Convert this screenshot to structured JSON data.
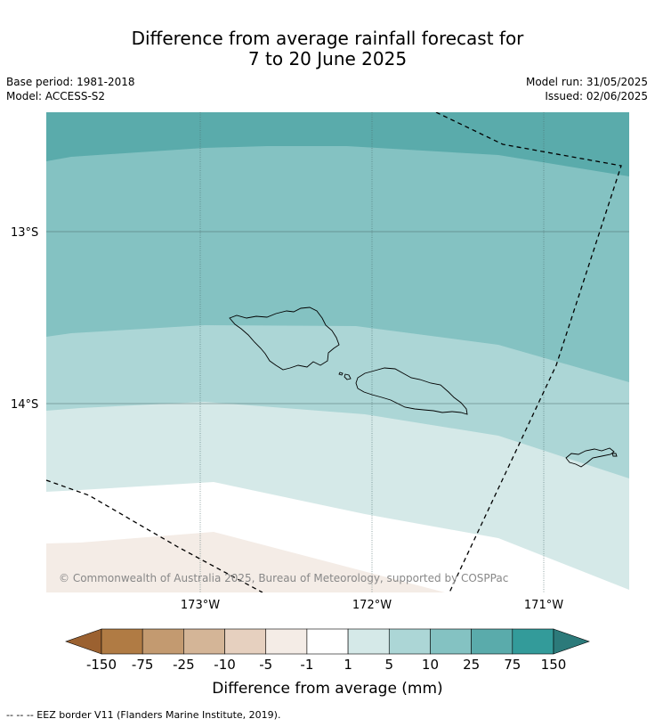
{
  "header": {
    "title_line1": "Difference from average rainfall forecast for",
    "title_line2": "7 to 20 June 2025",
    "base_period": "Base period: 1981-2018",
    "model": "Model: ACCESS-S2",
    "model_run": "Model run: 31/05/2025",
    "issued": "Issued: 02/06/2025"
  },
  "map": {
    "lat_labels": [
      "13°S",
      "14°S"
    ],
    "lon_labels": [
      "173°W",
      "172°W",
      "171°W"
    ],
    "copyright": "© Commonwealth of Australia 2025, Bureau of Meteorology, supported by COSPPac",
    "zone_colors": {
      "25_to_75": "#5aabab",
      "10_to_25": "#84c2c2",
      "5_to_10": "#acd6d6",
      "1_to_5": "#d5e9e8",
      "minus1_to_1": "#ffffff",
      "minus5_to_minus1": "#f4ece6"
    }
  },
  "colorbar": {
    "label": "Difference from average (mm)",
    "ticks": [
      "-150",
      "-75",
      "-25",
      "-10",
      "-5",
      "-1",
      "1",
      "5",
      "10",
      "25",
      "75",
      "150"
    ],
    "colors": [
      "#9b6130",
      "#b07b44",
      "#c39a70",
      "#d4b597",
      "#e6d0bf",
      "#f4ece6",
      "#ffffff",
      "#d5e9e8",
      "#acd6d6",
      "#84c2c2",
      "#5aabab",
      "#339b9a",
      "#2c7a7a"
    ]
  },
  "footnote": "--  --  -- EEZ border V11 (Flanders Marine Institute, 2019)."
}
